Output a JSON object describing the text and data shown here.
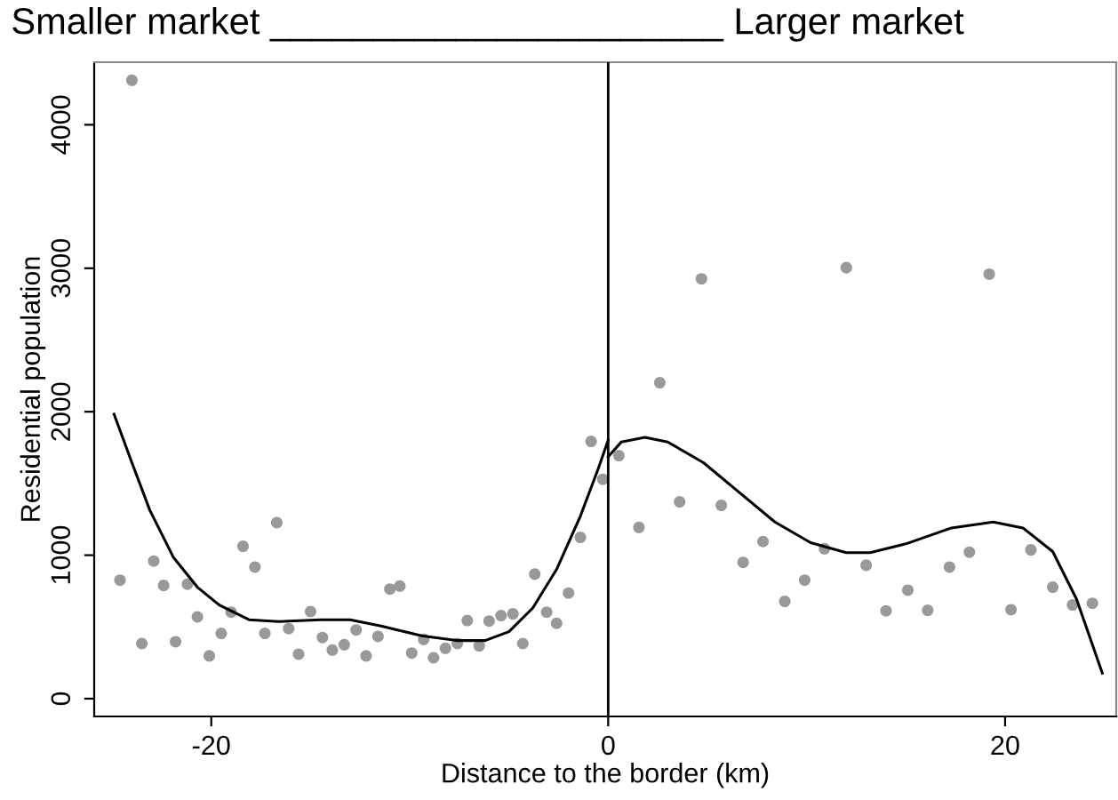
{
  "chart_data": {
    "type": "scatter",
    "title": "Smaller market ______________________ Larger market",
    "xlabel": "Distance to the border (km)",
    "ylabel": "Residential population",
    "xlim": [
      -25.9,
      25.6
    ],
    "xticks": [
      -20,
      0,
      20
    ],
    "ylim": [
      -124,
      4436
    ],
    "yticks": [
      0,
      1000,
      2000,
      3000,
      4000
    ],
    "grid": false,
    "legend": false,
    "marker": "circle",
    "ref_lines": [
      {
        "axis": "x",
        "value": 0,
        "color": "#000000"
      }
    ],
    "series": [
      {
        "color": "#999999",
        "x": [
          -24.6,
          -24.0,
          -23.5,
          -22.9,
          -22.4,
          -21.8,
          -21.2,
          -20.7,
          -20.1,
          -19.5,
          -19.0,
          -18.4,
          -17.8,
          -17.3,
          -16.7,
          -16.1,
          -15.6,
          -15.0,
          -14.4,
          -13.9,
          -13.3,
          -12.7,
          -12.2,
          -11.6,
          -11.0,
          -10.5,
          -9.9,
          -9.3,
          -8.8,
          -8.2,
          -7.6,
          -7.1,
          -6.5,
          -6.0,
          -5.4,
          -4.8,
          -4.3,
          -3.7,
          -3.1,
          -2.6,
          -2.0,
          -1.4,
          -0.86,
          -0.27,
          0.54,
          1.55,
          2.6,
          3.6,
          4.7,
          5.7,
          6.8,
          7.8,
          8.9,
          9.9,
          10.9,
          12.0,
          13.0,
          14.0,
          15.1,
          16.1,
          17.2,
          18.2,
          19.2,
          20.3,
          21.3,
          22.4,
          23.4,
          24.4
        ],
        "values": [
          826,
          4310,
          384,
          959,
          789,
          397,
          798,
          570,
          298,
          455,
          603,
          1062,
          917,
          455,
          1227,
          488,
          310,
          607,
          426,
          339,
          376,
          479,
          298,
          434,
          764,
          785,
          318,
          413,
          285,
          351,
          384,
          545,
          368,
          541,
          579,
          591,
          384,
          868,
          603,
          525,
          736,
          1124,
          1793,
          1529,
          1694,
          1194,
          2202,
          1372,
          2926,
          1347,
          950,
          1095,
          678,
          826,
          1045,
          3004,
          930,
          612,
          756,
          616,
          917,
          1021,
          2959,
          620,
          1037,
          777,
          653,
          665
        ]
      },
      {
        "type": "line",
        "color": "#000000",
        "marker": "none",
        "x": [
          -24.9,
          -24.0,
          -23.1,
          -21.9,
          -20.7,
          -19.6,
          -18.1,
          -16.6,
          -14.5,
          -13.0,
          -11.5,
          -9.4,
          -7.6,
          -6.2,
          -5.0,
          -3.8,
          -2.6,
          -1.4,
          -0.5,
          0
        ],
        "values": [
          1983,
          1645,
          1314,
          983,
          777,
          653,
          550,
          537,
          550,
          550,
          508,
          438,
          405,
          405,
          467,
          632,
          901,
          1273,
          1603,
          1802
        ]
      },
      {
        "type": "line",
        "color": "#000000",
        "marker": "none",
        "x": [
          0,
          0.66,
          1.85,
          3.0,
          4.8,
          6.6,
          8.4,
          10.2,
          12.0,
          13.2,
          15.0,
          17.3,
          19.4,
          20.9,
          22.4,
          23.6,
          24.9
        ],
        "values": [
          1686,
          1789,
          1822,
          1789,
          1645,
          1438,
          1231,
          1087,
          1017,
          1017,
          1079,
          1190,
          1231,
          1190,
          1025,
          694,
          178
        ]
      }
    ]
  }
}
